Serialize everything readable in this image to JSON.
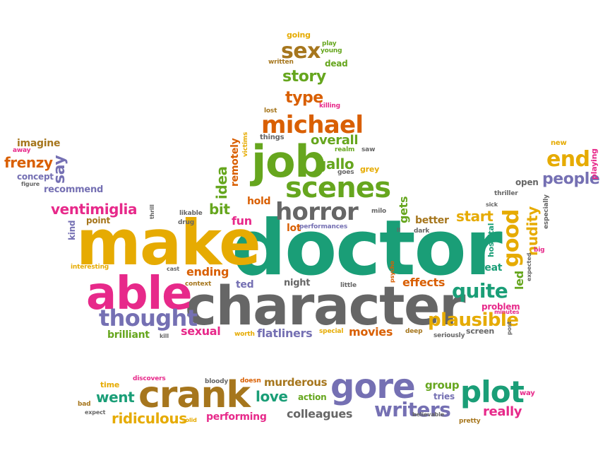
{
  "palette": {
    "green": "#1a9e77",
    "orange": "#d95f02",
    "purple": "#7570b3",
    "pink": "#e7298a",
    "lime": "#66a61e",
    "yellow": "#e6ab02",
    "brown": "#a6761d",
    "gray": "#666666"
  },
  "words": [
    {
      "text": "doctor",
      "color": "green"
    },
    {
      "text": "make",
      "color": "yellow"
    },
    {
      "text": "character",
      "color": "gray"
    },
    {
      "text": "able",
      "color": "pink"
    },
    {
      "text": "job",
      "color": "lime"
    },
    {
      "text": "horror",
      "color": "gray"
    },
    {
      "text": "scenes",
      "color": "lime"
    },
    {
      "text": "crank",
      "color": "brown"
    },
    {
      "text": "gore",
      "color": "purple"
    },
    {
      "text": "plot",
      "color": "green"
    },
    {
      "text": "writers",
      "color": "purple"
    },
    {
      "text": "thought",
      "color": "purple"
    },
    {
      "text": "michael",
      "color": "orange"
    },
    {
      "text": "sex",
      "color": "brown"
    },
    {
      "text": "story",
      "color": "lime"
    },
    {
      "text": "type",
      "color": "orange"
    },
    {
      "text": "quite",
      "color": "green"
    },
    {
      "text": "plausible",
      "color": "yellow"
    },
    {
      "text": "good",
      "color": "yellow"
    },
    {
      "text": "end",
      "color": "yellow"
    },
    {
      "text": "people",
      "color": "purple"
    },
    {
      "text": "ventimiglia",
      "color": "pink"
    },
    {
      "text": "frenzy",
      "color": "orange"
    },
    {
      "text": "imagine",
      "color": "brown"
    },
    {
      "text": "say",
      "color": "purple"
    },
    {
      "text": "concept",
      "color": "purple"
    },
    {
      "text": "recommend",
      "color": "purple"
    },
    {
      "text": "overall",
      "color": "lime"
    },
    {
      "text": "gallo",
      "color": "lime"
    },
    {
      "text": "idea",
      "color": "lime"
    },
    {
      "text": "remotely",
      "color": "orange"
    },
    {
      "text": "bit",
      "color": "lime"
    },
    {
      "text": "fun",
      "color": "pink"
    },
    {
      "text": "hold",
      "color": "orange"
    },
    {
      "text": "ending",
      "color": "orange"
    },
    {
      "text": "ted",
      "color": "purple"
    },
    {
      "text": "night",
      "color": "gray"
    },
    {
      "text": "effects",
      "color": "orange"
    },
    {
      "text": "start",
      "color": "yellow"
    },
    {
      "text": "better",
      "color": "brown"
    },
    {
      "text": "lot",
      "color": "orange"
    },
    {
      "text": "gets",
      "color": "lime"
    },
    {
      "text": "great",
      "color": "green"
    },
    {
      "text": "led",
      "color": "lime"
    },
    {
      "text": "nudity",
      "color": "yellow"
    },
    {
      "text": "sexual",
      "color": "pink"
    },
    {
      "text": "flatliners",
      "color": "purple"
    },
    {
      "text": "movies",
      "color": "orange"
    },
    {
      "text": "brilliant",
      "color": "lime"
    },
    {
      "text": "went",
      "color": "green"
    },
    {
      "text": "ridiculous",
      "color": "yellow"
    },
    {
      "text": "love",
      "color": "green"
    },
    {
      "text": "murderous",
      "color": "brown"
    },
    {
      "text": "colleagues",
      "color": "gray"
    },
    {
      "text": "performing",
      "color": "pink"
    },
    {
      "text": "really",
      "color": "pink"
    },
    {
      "text": "group",
      "color": "lime"
    },
    {
      "text": "action",
      "color": "lime"
    },
    {
      "text": "tries",
      "color": "purple"
    },
    {
      "text": "problem",
      "color": "pink"
    },
    {
      "text": "open",
      "color": "gray"
    },
    {
      "text": "point",
      "color": "brown"
    },
    {
      "text": "kind",
      "color": "purple"
    },
    {
      "text": "going",
      "color": "yellow"
    },
    {
      "text": "play",
      "color": "lime"
    },
    {
      "text": "young",
      "color": "lime"
    },
    {
      "text": "written",
      "color": "brown"
    },
    {
      "text": "dead",
      "color": "lime"
    },
    {
      "text": "killing",
      "color": "pink"
    },
    {
      "text": "lost",
      "color": "brown"
    },
    {
      "text": "things",
      "color": "gray"
    },
    {
      "text": "victims",
      "color": "yellow"
    },
    {
      "text": "realm",
      "color": "lime"
    },
    {
      "text": "saw",
      "color": "gray"
    },
    {
      "text": "goes",
      "color": "gray"
    },
    {
      "text": "grey",
      "color": "yellow"
    },
    {
      "text": "away",
      "color": "pink"
    },
    {
      "text": "figure",
      "color": "gray"
    },
    {
      "text": "thrill",
      "color": "gray"
    },
    {
      "text": "likable",
      "color": "gray"
    },
    {
      "text": "drug",
      "color": "gray"
    },
    {
      "text": "interesting",
      "color": "yellow"
    },
    {
      "text": "cast",
      "color": "gray"
    },
    {
      "text": "context",
      "color": "brown"
    },
    {
      "text": "kill",
      "color": "gray"
    },
    {
      "text": "worth",
      "color": "yellow"
    },
    {
      "text": "special",
      "color": "yellow"
    },
    {
      "text": "deep",
      "color": "brown"
    },
    {
      "text": "seriously",
      "color": "gray"
    },
    {
      "text": "screen",
      "color": "gray"
    },
    {
      "text": "milo",
      "color": "gray"
    },
    {
      "text": "performances",
      "color": "purple"
    },
    {
      "text": "ll",
      "color": "gray"
    },
    {
      "text": "dark",
      "color": "gray"
    },
    {
      "text": "psycho",
      "color": "orange"
    },
    {
      "text": "little",
      "color": "gray"
    },
    {
      "text": "hospital",
      "color": "green"
    },
    {
      "text": "thriller",
      "color": "gray"
    },
    {
      "text": "sick",
      "color": "gray"
    },
    {
      "text": "especially",
      "color": "gray"
    },
    {
      "text": "expected",
      "color": "gray"
    },
    {
      "text": "big",
      "color": "pink"
    },
    {
      "text": "minutes",
      "color": "pink"
    },
    {
      "text": "post",
      "color": "gray"
    },
    {
      "text": "new",
      "color": "yellow"
    },
    {
      "text": "playing",
      "color": "pink"
    },
    {
      "text": "time",
      "color": "yellow"
    },
    {
      "text": "discovers",
      "color": "pink"
    },
    {
      "text": "bad",
      "color": "brown"
    },
    {
      "text": "expect",
      "color": "gray"
    },
    {
      "text": "bloody",
      "color": "gray"
    },
    {
      "text": "doesn",
      "color": "orange"
    },
    {
      "text": "solid",
      "color": "yellow"
    },
    {
      "text": "believable",
      "color": "gray"
    },
    {
      "text": "pretty",
      "color": "brown"
    },
    {
      "text": "way",
      "color": "pink"
    }
  ]
}
